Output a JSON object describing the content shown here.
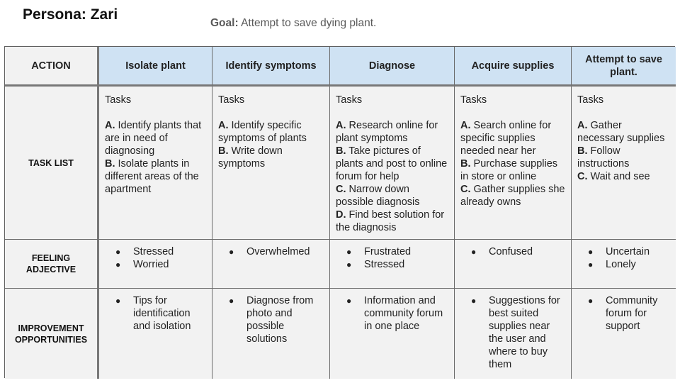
{
  "persona": "Persona: Zari",
  "goal": {
    "label": "Goal:",
    "text": "Attempt to save dying plant."
  },
  "header": {
    "action": "ACTION",
    "stages": [
      "Isolate plant",
      "Identify symptoms",
      "Diagnose",
      "Acquire supplies",
      "Attempt to save plant."
    ]
  },
  "rows": {
    "task_list": "TASK LIST",
    "feeling": "FEELING ADJECTIVE",
    "improvement": "IMPROVEMENT OPPORTUNITIES"
  },
  "tasks_heading": "Tasks",
  "tasks": [
    [
      {
        "letter": "A.",
        "text": "Identify plants that are in need of diagnosing"
      },
      {
        "letter": "B.",
        "text": "Isolate plants in different areas of the apartment"
      }
    ],
    [
      {
        "letter": "A.",
        "text": "Identify specific symptoms of plants"
      },
      {
        "letter": "B.",
        "text": "Write down symptoms"
      }
    ],
    [
      {
        "letter": "A.",
        "text": "Research online for plant symptoms"
      },
      {
        "letter": "B.",
        "text": "Take pictures of plants and post to online forum for help"
      },
      {
        "letter": "C.",
        "text": "Narrow down possible diagnosis"
      },
      {
        "letter": "D.",
        "text": "Find best solution for the diagnosis"
      }
    ],
    [
      {
        "letter": "A.",
        "text": "Search online for specific supplies needed near her"
      },
      {
        "letter": "B.",
        "text": "Purchase supplies in store or online"
      },
      {
        "letter": "C.",
        "text": "Gather supplies she already owns"
      }
    ],
    [
      {
        "letter": "A.",
        "text": "Gather necessary supplies"
      },
      {
        "letter": "B.",
        "text": "Follow instructions"
      },
      {
        "letter": "C.",
        "text": "Wait and see"
      }
    ]
  ],
  "feelings": [
    [
      "Stressed",
      "Worried"
    ],
    [
      "Overwhelmed"
    ],
    [
      "Frustrated",
      "Stressed"
    ],
    [
      "Confused"
    ],
    [
      "Uncertain",
      "Lonely"
    ]
  ],
  "improvements": [
    [
      "Tips for identification and isolation"
    ],
    [
      "Diagnose from photo and possible solutions"
    ],
    [
      "Information and community forum in one place"
    ],
    [
      "Suggestions for best suited supplies near the user and where to buy them"
    ],
    [
      "Community forum for support"
    ]
  ],
  "bullet": "●"
}
